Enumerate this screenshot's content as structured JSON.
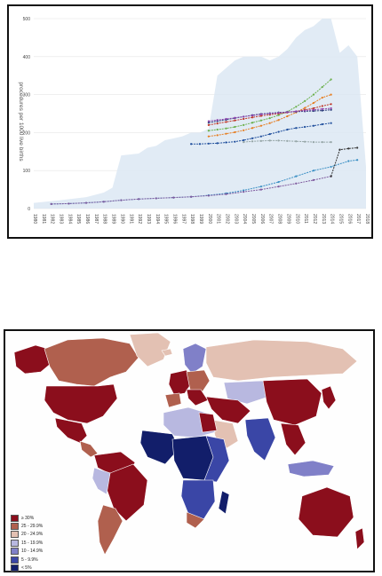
{
  "chart_data": [
    {
      "type": "line",
      "ylabel": "procedures per 1000 live births",
      "ylim": [
        0,
        500
      ],
      "yticks": [
        0,
        100,
        200,
        300,
        400,
        500
      ],
      "x": [
        1980,
        1981,
        1982,
        1983,
        1984,
        1985,
        1986,
        1987,
        1988,
        1989,
        1990,
        1991,
        1992,
        1993,
        1994,
        1995,
        1996,
        1997,
        1998,
        1999,
        2000,
        2001,
        2002,
        2003,
        2004,
        2005,
        2006,
        2007,
        2008,
        2009,
        2010,
        2011,
        2012,
        2013,
        2014,
        2015,
        2016,
        2017,
        2018
      ],
      "band": {
        "x": [
          1980,
          1983,
          1986,
          1988,
          1989,
          1990,
          1992,
          1993,
          1994,
          1995,
          1996,
          1997,
          1998,
          1999,
          2000,
          2001,
          2002,
          2003,
          2004,
          2005,
          2006,
          2007,
          2008,
          2009,
          2010,
          2011,
          2012,
          2013,
          2014,
          2015,
          2016,
          2017,
          2018
        ],
        "upper": [
          15,
          22,
          30,
          42,
          55,
          140,
          145,
          160,
          165,
          180,
          185,
          190,
          200,
          200,
          210,
          350,
          370,
          390,
          400,
          400,
          400,
          390,
          400,
          420,
          450,
          470,
          480,
          500,
          500,
          410,
          430,
          400,
          110
        ],
        "lower": [
          0,
          0,
          0,
          0,
          0,
          0,
          0,
          0,
          0,
          0,
          0,
          0,
          0,
          0,
          0,
          0,
          0,
          0,
          0,
          0,
          0,
          0,
          0,
          0,
          0,
          0,
          0,
          0,
          0,
          0,
          0,
          0,
          0
        ]
      },
      "series": [
        {
          "color": "#e67e22",
          "x": [
            2000,
            2001,
            2002,
            2003,
            2004,
            2005,
            2006,
            2007,
            2008,
            2009,
            2010,
            2011,
            2012,
            2013,
            2014
          ],
          "values": [
            190,
            193,
            197,
            201,
            206,
            212,
            218,
            225,
            233,
            243,
            253,
            265,
            278,
            292,
            300
          ]
        },
        {
          "color": "#6ab04c",
          "x": [
            2000,
            2001,
            2002,
            2003,
            2004,
            2005,
            2006,
            2007,
            2008,
            2009,
            2010,
            2011,
            2012,
            2013,
            2014
          ],
          "values": [
            205,
            208,
            211,
            215,
            220,
            226,
            232,
            238,
            246,
            255,
            268,
            283,
            300,
            320,
            340
          ]
        },
        {
          "color": "#c0392b",
          "x": [
            2000,
            2001,
            2002,
            2003,
            2004,
            2005,
            2006,
            2007,
            2008,
            2009,
            2010,
            2011,
            2012,
            2013,
            2014
          ],
          "values": [
            220,
            224,
            228,
            232,
            236,
            240,
            244,
            247,
            250,
            253,
            256,
            260,
            264,
            270,
            275
          ]
        },
        {
          "color": "#2c3e7a",
          "x": [
            2000,
            2001,
            2002,
            2003,
            2004,
            2005,
            2006,
            2007,
            2008,
            2009,
            2010,
            2011,
            2012,
            2013,
            2014
          ],
          "values": [
            226,
            230,
            234,
            238,
            242,
            246,
            249,
            251,
            253,
            254,
            255,
            256,
            257,
            258,
            260
          ]
        },
        {
          "color": "#8e44ad",
          "x": [
            2000,
            2001,
            2002,
            2003,
            2004,
            2005,
            2006,
            2007,
            2008,
            2009,
            2010,
            2011,
            2012,
            2013,
            2014
          ],
          "values": [
            230,
            233,
            236,
            239,
            242,
            245,
            248,
            250,
            252,
            254,
            256,
            258,
            260,
            262,
            264
          ]
        },
        {
          "color": "#1f4e9c",
          "x": [
            1998,
            1999,
            2000,
            2001,
            2002,
            2003,
            2004,
            2005,
            2006,
            2007,
            2008,
            2009,
            2010,
            2011,
            2012,
            2013,
            2014
          ],
          "values": [
            170,
            170,
            171,
            172,
            174,
            176,
            180,
            185,
            190,
            196,
            202,
            208,
            212,
            215,
            218,
            222,
            225
          ]
        },
        {
          "color": "#95a5a6",
          "x": [
            2004,
            2005,
            2006,
            2007,
            2008,
            2009,
            2010,
            2011,
            2012,
            2013,
            2014
          ],
          "values": [
            175,
            177,
            178,
            179,
            179,
            178,
            177,
            176,
            175,
            175,
            175
          ]
        },
        {
          "color": "#3a8fc4",
          "x": [
            1982,
            1984,
            1986,
            1988,
            1990,
            1992,
            1994,
            1996,
            1998,
            2000,
            2002,
            2004,
            2006,
            2008,
            2010,
            2012,
            2014,
            2016,
            2017
          ],
          "values": [
            12,
            13,
            15,
            18,
            22,
            25,
            27,
            29,
            31,
            35,
            40,
            48,
            58,
            70,
            85,
            100,
            110,
            125,
            128
          ]
        },
        {
          "color": "#7f5a9e",
          "x": [
            1982,
            1984,
            1986,
            1988,
            1990,
            1992,
            1994,
            1996,
            1998,
            2000,
            2002,
            2004,
            2006,
            2008,
            2010,
            2012,
            2014
          ],
          "values": [
            12,
            13,
            15,
            18,
            22,
            25,
            27,
            29,
            31,
            34,
            38,
            44,
            50,
            58,
            66,
            75,
            85
          ]
        },
        {
          "color": "#333333",
          "x": [
            2014,
            2015,
            2016,
            2017
          ],
          "values": [
            85,
            155,
            158,
            160
          ]
        }
      ]
    },
    {
      "type": "heatmap",
      "legend": [
        {
          "label": "≥ 30%",
          "color": "#8b0e1c"
        },
        {
          "label": "25 - 29.9%",
          "color": "#b0604e"
        },
        {
          "label": "20 - 24.9%",
          "color": "#e3c1b3"
        },
        {
          "label": "15 - 19.9%",
          "color": "#b8b8e0"
        },
        {
          "label": "10 - 14.9%",
          "color": "#8080c8"
        },
        {
          "label": "5 - 9.9%",
          "color": "#3a46a6"
        },
        {
          "label": "< 5%",
          "color": "#121e6a"
        }
      ]
    }
  ]
}
